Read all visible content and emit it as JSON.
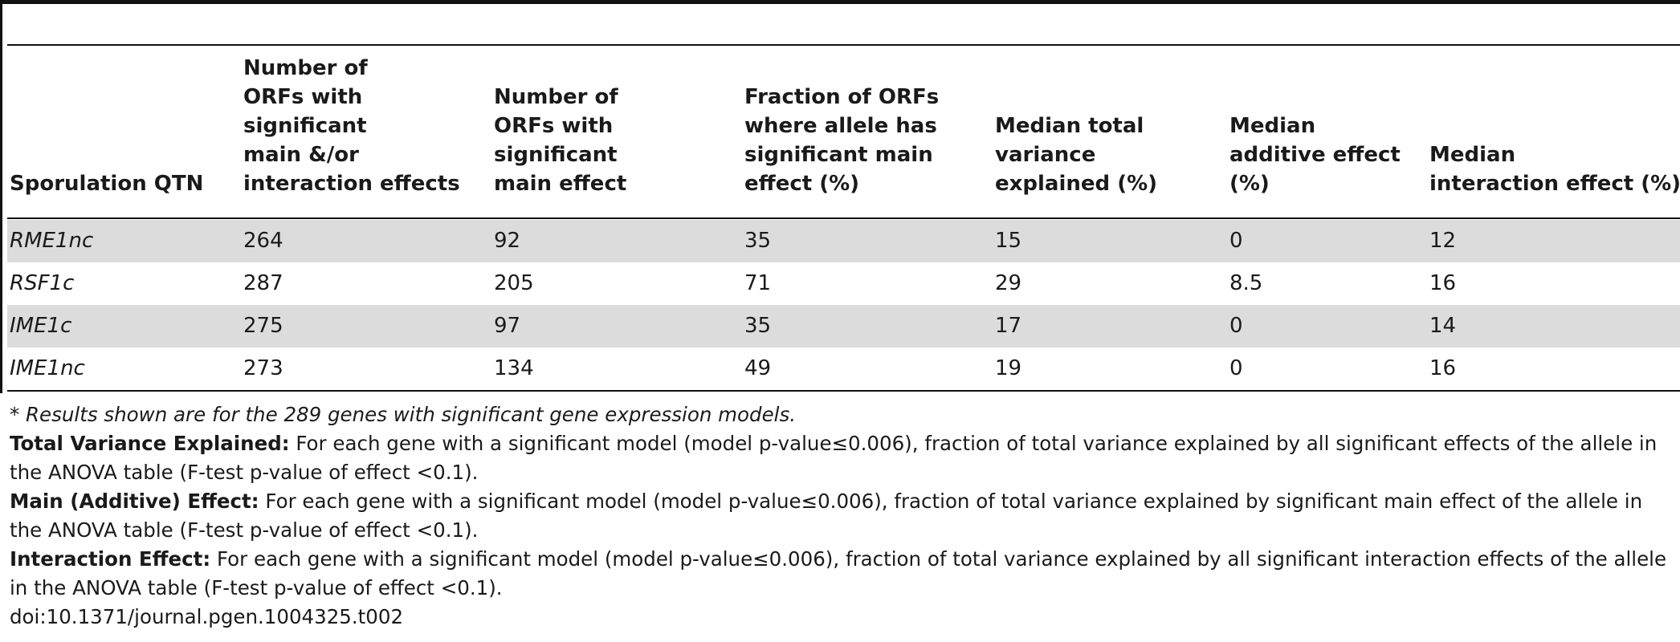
{
  "table": {
    "columns": [
      "Sporulation QTN",
      "Number of ORFs with significant main &/or interaction effects",
      "Number of ORFs with significant main effect",
      "Fraction of ORFs where allele has significant main effect (%)",
      "Median total variance explained (%)",
      "Median additive effect (%)",
      "Median interaction effect (%)"
    ],
    "column_lines": [
      [
        "Sporulation QTN"
      ],
      [
        "Number of",
        "ORFs with",
        "significant",
        "main &/or",
        "interaction effects"
      ],
      [
        "Number of",
        "ORFs with",
        "significant",
        "main effect"
      ],
      [
        "Fraction of ORFs",
        "where allele has",
        "significant main",
        "effect (%)"
      ],
      [
        "Median total",
        "variance",
        "explained (%)"
      ],
      [
        "Median",
        "additive effect",
        "(%)"
      ],
      [
        "Median",
        "interaction effect (%)"
      ]
    ],
    "rows": [
      [
        "RME1nc",
        "264",
        "92",
        "35",
        "15",
        "0",
        "12"
      ],
      [
        "RSF1c",
        "287",
        "205",
        "71",
        "29",
        "8.5",
        "16"
      ],
      [
        "IME1c",
        "275",
        "97",
        "35",
        "17",
        "0",
        "14"
      ],
      [
        "IME1nc",
        "273",
        "134",
        "49",
        "19",
        "0",
        "16"
      ]
    ]
  },
  "notes": {
    "star": "* Results shown are for the 289 genes with significant gene expression models.",
    "total_label": "Total Variance Explained:",
    "total_text_1": " For each gene with a significant model (model p-value≤0.006), fraction of total variance explained by all significant effects of the allele in",
    "total_text_2": "the ANOVA table (F-test p-value of effect <0.1).",
    "main_label": "Main (Additive) Effect:",
    "main_text_1": " For each gene with a significant model (model p-value≤0.006), fraction of total variance explained by significant main effect of the allele in",
    "main_text_2": "the ANOVA table (F-test p-value of effect <0.1).",
    "interaction_label": "Interaction Effect:",
    "interaction_text_1": " For each gene with a significant model (model p-value≤0.006), fraction of total variance explained by all significant interaction effects of the allele",
    "interaction_text_2": "in the ANOVA table (F-test p-value of effect <0.1).",
    "doi": "doi:10.1371/journal.pgen.1004325.t002"
  },
  "colors": {
    "row_shade": "#dcdcdc",
    "rule": "#111111",
    "text": "#1a1a1a"
  }
}
